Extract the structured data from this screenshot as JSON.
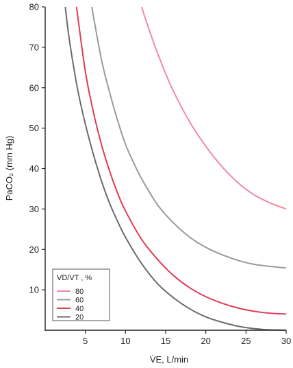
{
  "chart_data": {
    "type": "line",
    "title": "",
    "xlabel": "V̇E, L/min",
    "ylabel": "PaCO₂ (mm Hg)",
    "xlim": [
      0,
      30
    ],
    "ylim": [
      0,
      80
    ],
    "x_ticks": [
      5,
      10,
      15,
      20,
      25,
      30
    ],
    "y_ticks": [
      10,
      20,
      30,
      40,
      50,
      60,
      70,
      80
    ],
    "grid": false,
    "legend": {
      "title": "VD/VT , %",
      "position": "bottom-left",
      "entries": [
        "80",
        "60",
        "40",
        "20"
      ]
    },
    "series": [
      {
        "name": "80",
        "color": "#f08aa0",
        "x": [
          12,
          13,
          14,
          15,
          16,
          18,
          20,
          22,
          24,
          26,
          28,
          30
        ],
        "y": [
          80,
          74,
          68.5,
          63.5,
          59,
          51.5,
          45.5,
          40.5,
          36.5,
          33.5,
          31.5,
          30
        ]
      },
      {
        "name": "60",
        "color": "#9a9a9a",
        "x": [
          5.8,
          7,
          8,
          9,
          10,
          11,
          12,
          14,
          16,
          18,
          20,
          22,
          24,
          26,
          28,
          30
        ],
        "y": [
          80,
          67,
          59,
          52,
          46,
          41.5,
          37.5,
          31,
          26.5,
          23,
          20.5,
          18.7,
          17.3,
          16.3,
          15.8,
          15.4
        ]
      },
      {
        "name": "40",
        "color": "#e03a55",
        "x": [
          3.9,
          5,
          6,
          7,
          8,
          9,
          10,
          12,
          14,
          16,
          18,
          20,
          22,
          24,
          26,
          28,
          30
        ],
        "y": [
          80,
          64,
          54,
          46,
          39.5,
          34,
          29.5,
          22.5,
          17.5,
          13.5,
          10.5,
          8.3,
          6.7,
          5.5,
          4.7,
          4.2,
          4
        ]
      },
      {
        "name": "20",
        "color": "#6a6a6a",
        "x": [
          2.5,
          3,
          4,
          5,
          6,
          7,
          8,
          9,
          10,
          12,
          14,
          16,
          18,
          20,
          22,
          24,
          26,
          28,
          30
        ],
        "y": [
          80,
          72,
          60,
          51,
          43.5,
          37,
          31.5,
          27,
          23,
          16.5,
          11.5,
          8,
          5.3,
          3.3,
          2,
          1,
          0.4,
          0.1,
          0
        ]
      }
    ]
  }
}
